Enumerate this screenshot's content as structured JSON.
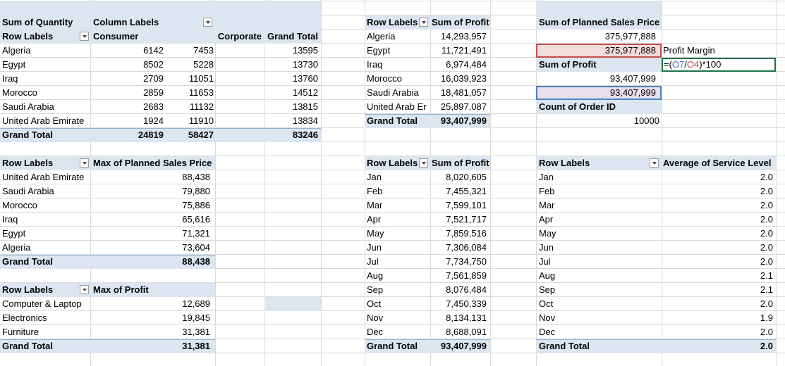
{
  "tables": [
    {
      "rows": [
        [
          "Sum of Quantity",
          "Column Labels"
        ],
        [
          "Row Labels",
          "Consumer",
          "Corporate",
          "Grand Total"
        ],
        [
          "Algeria",
          "6142",
          "7453",
          "13595"
        ],
        [
          "Egypt",
          "8502",
          "5228",
          "13730"
        ],
        [
          "Iraq",
          "2709",
          "11051",
          "13760"
        ],
        [
          "Morocco",
          "2859",
          "11653",
          "14512"
        ],
        [
          "Saudi Arabia",
          "2683",
          "11132",
          "13815"
        ],
        [
          "United Arab Emirate",
          "1924",
          "11910",
          "13834"
        ],
        [
          "Grand Total",
          "24819",
          "58427",
          "83246"
        ]
      ]
    },
    {
      "rows": [
        [
          "Row Labels",
          "Sum of Profit"
        ],
        [
          "Algeria",
          "14,293,957"
        ],
        [
          "Egypt",
          "11,721,491"
        ],
        [
          "Iraq",
          "6,974,484"
        ],
        [
          "Morocco",
          "16,039,923"
        ],
        [
          "Saudi Arabia",
          "18,481,057"
        ],
        [
          "United Arab Er",
          "25,897,087"
        ],
        [
          "Grand Total",
          "93,407,999"
        ]
      ]
    },
    {
      "rows": [
        [
          "Row Labels",
          "Max of Planned Sales Price"
        ],
        [
          "United Arab Emirate",
          "88,438"
        ],
        [
          "Saudi Arabia",
          "79,880"
        ],
        [
          "Morocco",
          "75,886"
        ],
        [
          "Iraq",
          "65,616"
        ],
        [
          "Egypt",
          "71,321"
        ],
        [
          "Algeria",
          "73,604"
        ],
        [
          "Grand Total",
          "88,438"
        ]
      ]
    },
    {
      "rows": [
        [
          "Row Labels",
          "Max of Profit"
        ],
        [
          "Computer & Laptop",
          "12,689"
        ],
        [
          "Electronics",
          "19,845"
        ],
        [
          "Furniture",
          "31,381"
        ],
        [
          "Grand Total",
          "31,381"
        ]
      ]
    },
    {
      "rows": [
        [
          "Row Labels",
          "Sum of Profit"
        ],
        [
          "Jan",
          "8,020,605"
        ],
        [
          "Feb",
          "7,455,321"
        ],
        [
          "Mar",
          "7,599,101"
        ],
        [
          "Apr",
          "7,521,717"
        ],
        [
          "May",
          "7,859,516"
        ],
        [
          "Jun",
          "7,306,084"
        ],
        [
          "Jul",
          "7,734,750"
        ],
        [
          "Aug",
          "7,561,859"
        ],
        [
          "Sep",
          "8,076,484"
        ],
        [
          "Oct",
          "7,450,339"
        ],
        [
          "Nov",
          "8,134,131"
        ],
        [
          "Dec",
          "8,688,091"
        ],
        [
          "Grand Total",
          "93,407,999"
        ]
      ]
    },
    {
      "rows": [
        [
          "Row Labels",
          "Average of Service Level"
        ],
        [
          "Jan",
          "2.0"
        ],
        [
          "Feb",
          "2.0"
        ],
        [
          "Mar",
          "2.0"
        ],
        [
          "Apr",
          "2.0"
        ],
        [
          "May",
          "2.0"
        ],
        [
          "Jun",
          "2.0"
        ],
        [
          "Jul",
          "2.0"
        ],
        [
          "Aug",
          "2.1"
        ],
        [
          "Sep",
          "2.1"
        ],
        [
          "Oct",
          "2.0"
        ],
        [
          "Nov",
          "1.9"
        ],
        [
          "Dec",
          "2.0"
        ],
        [
          "Grand Total",
          "2.0"
        ]
      ]
    }
  ],
  "summary": {
    "cells": [
      "Sum of Planned Sales Price",
      "375,977,888",
      "375,977,888",
      "Sum of Profit",
      "93,407,999",
      "93,407,999",
      "Count of Order ID",
      "10000"
    ]
  },
  "profit_margin": {
    "label": "Profit Margin",
    "formula": [
      "=(",
      "O7",
      "/",
      "O4",
      ")*100"
    ]
  }
}
